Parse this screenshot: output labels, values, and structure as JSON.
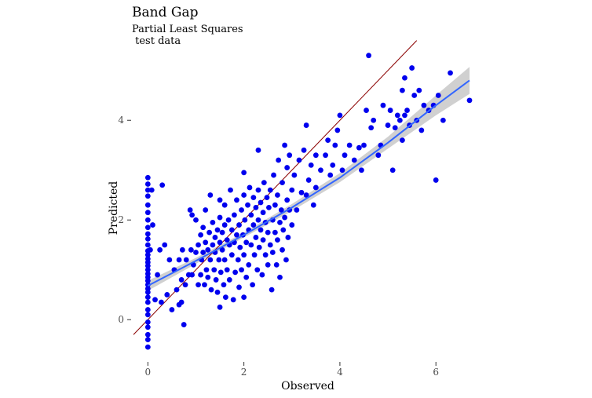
{
  "chart_data": {
    "type": "scatter",
    "title": "Band Gap",
    "subtitle_line1": "Partial Least Squares",
    "subtitle_line2": " test data",
    "xlabel": "Observed",
    "ylabel": "Predicted",
    "xlim": [
      -0.3,
      6.7
    ],
    "ylim": [
      -0.8,
      5.5
    ],
    "x_ticks": [
      0,
      2,
      4,
      6
    ],
    "y_ticks": [
      0,
      2,
      4
    ],
    "grid": false,
    "colors": {
      "points": "#0000ee",
      "smooth": "#3366ff",
      "band": "#c8c8c8",
      "identity": "#8b0000"
    },
    "identity_line": {
      "slope": 1,
      "intercept": 0
    },
    "smooth_fit": {
      "x": [
        0,
        1,
        2,
        3,
        4,
        5,
        6,
        6.7
      ],
      "y": [
        0.68,
        1.18,
        1.7,
        2.25,
        2.85,
        3.55,
        4.3,
        4.8
      ],
      "se_halfwidth": [
        0.1,
        0.06,
        0.05,
        0.07,
        0.09,
        0.12,
        0.2,
        0.27
      ]
    },
    "points": [
      [
        0,
        -0.55
      ],
      [
        0,
        -0.4
      ],
      [
        0,
        -0.3
      ],
      [
        0,
        -0.15
      ],
      [
        0,
        -0.05
      ],
      [
        0,
        0.1
      ],
      [
        0,
        0.2
      ],
      [
        0,
        0.35
      ],
      [
        0,
        0.45
      ],
      [
        0,
        0.55
      ],
      [
        0,
        0.62
      ],
      [
        0,
        0.7
      ],
      [
        0,
        0.78
      ],
      [
        0,
        0.85
      ],
      [
        0,
        0.92
      ],
      [
        0,
        1.0
      ],
      [
        0,
        1.08
      ],
      [
        0,
        1.15
      ],
      [
        0,
        1.22
      ],
      [
        0,
        1.3
      ],
      [
        0,
        1.38
      ],
      [
        0,
        1.5
      ],
      [
        0,
        1.62
      ],
      [
        0,
        1.72
      ],
      [
        0,
        1.85
      ],
      [
        0,
        2.0
      ],
      [
        0,
        2.15
      ],
      [
        0,
        2.3
      ],
      [
        0,
        2.48
      ],
      [
        0,
        2.6
      ],
      [
        0,
        2.72
      ],
      [
        0,
        2.85
      ],
      [
        0.05,
        1.4
      ],
      [
        0.08,
        2.6
      ],
      [
        0.1,
        1.9
      ],
      [
        0.15,
        0.4
      ],
      [
        0.2,
        0.9
      ],
      [
        0.25,
        1.4
      ],
      [
        0.28,
        0.35
      ],
      [
        0.3,
        2.7
      ],
      [
        0.35,
        1.5
      ],
      [
        0.4,
        0.5
      ],
      [
        0.45,
        1.2
      ],
      [
        0.5,
        0.2
      ],
      [
        0.55,
        1.0
      ],
      [
        0.6,
        0.6
      ],
      [
        0.65,
        1.2
      ],
      [
        0.65,
        0.3
      ],
      [
        0.7,
        0.8
      ],
      [
        0.7,
        0.35
      ],
      [
        0.72,
        1.4
      ],
      [
        0.75,
        -0.1
      ],
      [
        0.78,
        0.7
      ],
      [
        0.8,
        1.2
      ],
      [
        0.85,
        0.9
      ],
      [
        0.88,
        2.2
      ],
      [
        0.9,
        1.4
      ],
      [
        0.92,
        0.9
      ],
      [
        0.95,
        1.1
      ],
      [
        1.0,
        1.35
      ],
      [
        1.0,
        2.0
      ],
      [
        1.05,
        1.5
      ],
      [
        1.05,
        0.7
      ],
      [
        1.1,
        1.7
      ],
      [
        1.1,
        0.9
      ],
      [
        1.12,
        1.2
      ],
      [
        1.15,
        1.85
      ],
      [
        1.15,
        1.35
      ],
      [
        1.18,
        0.7
      ],
      [
        1.2,
        2.2
      ],
      [
        1.2,
        1.55
      ],
      [
        1.22,
        1.0
      ],
      [
        1.25,
        1.4
      ],
      [
        1.25,
        0.85
      ],
      [
        1.28,
        1.75
      ],
      [
        1.3,
        1.2
      ],
      [
        1.3,
        2.5
      ],
      [
        1.32,
        0.6
      ],
      [
        1.35,
        1.95
      ],
      [
        1.35,
        1.5
      ],
      [
        1.38,
        1.0
      ],
      [
        1.4,
        1.65
      ],
      [
        1.4,
        1.35
      ],
      [
        1.42,
        0.8
      ],
      [
        1.45,
        1.8
      ],
      [
        1.45,
        0.55
      ],
      [
        1.48,
        1.2
      ],
      [
        1.5,
        2.05
      ],
      [
        1.5,
        1.55
      ],
      [
        1.5,
        0.25
      ],
      [
        1.52,
        0.95
      ],
      [
        1.55,
        1.75
      ],
      [
        1.55,
        1.4
      ],
      [
        1.58,
        0.7
      ],
      [
        1.6,
        2.3
      ],
      [
        1.6,
        1.9
      ],
      [
        1.6,
        1.2
      ],
      [
        1.62,
        0.45
      ],
      [
        1.65,
        1.6
      ],
      [
        1.65,
        1.0
      ],
      [
        1.68,
        2.0
      ],
      [
        1.7,
        1.5
      ],
      [
        1.7,
        0.8
      ],
      [
        1.72,
        2.6
      ],
      [
        1.75,
        1.3
      ],
      [
        1.75,
        1.8
      ],
      [
        1.78,
        0.4
      ],
      [
        1.8,
        2.1
      ],
      [
        1.8,
        1.55
      ],
      [
        1.82,
        0.95
      ],
      [
        1.85,
        1.7
      ],
      [
        1.85,
        2.4
      ],
      [
        1.88,
        1.2
      ],
      [
        1.9,
        1.9
      ],
      [
        1.9,
        0.65
      ],
      [
        1.92,
        1.45
      ],
      [
        1.95,
        2.2
      ],
      [
        1.95,
        1.0
      ],
      [
        1.98,
        1.7
      ],
      [
        2.0,
        2.5
      ],
      [
        2.0,
        1.3
      ],
      [
        2.0,
        0.45
      ],
      [
        2.02,
        2.0
      ],
      [
        2.05,
        1.55
      ],
      [
        2.05,
        0.85
      ],
      [
        2.08,
        2.3
      ],
      [
        2.1,
        1.8
      ],
      [
        2.1,
        1.1
      ],
      [
        2.12,
        2.65
      ],
      [
        2.15,
        1.5
      ],
      [
        2.15,
        2.1
      ],
      [
        2.18,
        0.7
      ],
      [
        2.2,
        1.9
      ],
      [
        2.2,
        2.45
      ],
      [
        2.22,
        1.3
      ],
      [
        2.25,
        2.25
      ],
      [
        2.25,
        1.65
      ],
      [
        2.28,
        1.0
      ],
      [
        2.3,
        2.0
      ],
      [
        2.3,
        2.6
      ],
      [
        2.32,
        1.45
      ],
      [
        2.35,
        1.8
      ],
      [
        2.35,
        2.35
      ],
      [
        2.38,
        0.9
      ],
      [
        2.4,
        2.15
      ],
      [
        2.4,
        1.6
      ],
      [
        2.42,
        2.75
      ],
      [
        2.45,
        1.3
      ],
      [
        2.45,
        1.95
      ],
      [
        2.48,
        2.45
      ],
      [
        2.5,
        1.75
      ],
      [
        2.5,
        1.1
      ],
      [
        2.52,
        2.25
      ],
      [
        2.55,
        1.5
      ],
      [
        2.55,
        2.6
      ],
      [
        2.58,
        0.6
      ],
      [
        2.6,
        2.0
      ],
      [
        2.6,
        1.35
      ],
      [
        2.62,
        2.9
      ],
      [
        2.65,
        1.75
      ],
      [
        2.65,
        2.3
      ],
      [
        2.68,
        1.1
      ],
      [
        2.7,
        2.5
      ],
      [
        2.7,
        1.6
      ],
      [
        2.72,
        3.2
      ],
      [
        2.75,
        1.95
      ],
      [
        2.75,
        0.85
      ],
      [
        2.78,
        2.2
      ],
      [
        2.8,
        1.4
      ],
      [
        2.8,
        2.75
      ],
      [
        2.82,
        1.8
      ],
      [
        2.85,
        3.5
      ],
      [
        2.85,
        2.05
      ],
      [
        2.88,
        1.2
      ],
      [
        2.9,
        2.4
      ],
      [
        2.9,
        3.05
      ],
      [
        2.92,
        1.65
      ],
      [
        2.95,
        2.2
      ],
      [
        2.95,
        3.3
      ],
      [
        3.0,
        2.6
      ],
      [
        3.0,
        1.9
      ],
      [
        3.05,
        2.9
      ],
      [
        3.1,
        2.2
      ],
      [
        3.15,
        3.2
      ],
      [
        3.2,
        2.55
      ],
      [
        3.25,
        3.4
      ],
      [
        3.3,
        2.5
      ],
      [
        3.35,
        2.8
      ],
      [
        3.4,
        3.1
      ],
      [
        3.45,
        2.3
      ],
      [
        3.5,
        3.3
      ],
      [
        3.5,
        2.65
      ],
      [
        3.6,
        3.0
      ],
      [
        3.7,
        3.3
      ],
      [
        3.75,
        3.6
      ],
      [
        3.8,
        2.9
      ],
      [
        3.9,
        3.5
      ],
      [
        3.95,
        3.8
      ],
      [
        4.0,
        4.1
      ],
      [
        4.05,
        3.0
      ],
      [
        4.1,
        3.3
      ],
      [
        4.2,
        3.5
      ],
      [
        4.3,
        3.2
      ],
      [
        4.4,
        3.45
      ],
      [
        4.45,
        3.0
      ],
      [
        4.5,
        3.5
      ],
      [
        4.55,
        4.2
      ],
      [
        4.6,
        5.3
      ],
      [
        4.65,
        3.85
      ],
      [
        4.7,
        4.0
      ],
      [
        4.8,
        3.3
      ],
      [
        4.85,
        3.5
      ],
      [
        4.9,
        4.3
      ],
      [
        5.0,
        3.9
      ],
      [
        5.05,
        4.2
      ],
      [
        5.1,
        3.0
      ],
      [
        5.15,
        3.85
      ],
      [
        5.2,
        4.1
      ],
      [
        5.25,
        4.0
      ],
      [
        5.3,
        3.6
      ],
      [
        5.3,
        4.6
      ],
      [
        5.35,
        4.1
      ],
      [
        5.4,
        4.2
      ],
      [
        5.45,
        3.9
      ],
      [
        5.5,
        5.05
      ],
      [
        5.55,
        4.5
      ],
      [
        5.6,
        4.0
      ],
      [
        5.65,
        4.6
      ],
      [
        5.7,
        3.8
      ],
      [
        5.75,
        4.3
      ],
      [
        5.85,
        4.2
      ],
      [
        5.95,
        4.3
      ],
      [
        6.0,
        2.8
      ],
      [
        6.05,
        4.5
      ],
      [
        6.15,
        4.0
      ],
      [
        6.3,
        4.95
      ],
      [
        6.7,
        4.4
      ],
      [
        3.85,
        3.1
      ],
      [
        3.3,
        3.9
      ],
      [
        2.3,
        3.4
      ],
      [
        1.5,
        2.4
      ],
      [
        0.92,
        2.1
      ],
      [
        5.35,
        4.85
      ],
      [
        2.0,
        2.95
      ]
    ]
  }
}
